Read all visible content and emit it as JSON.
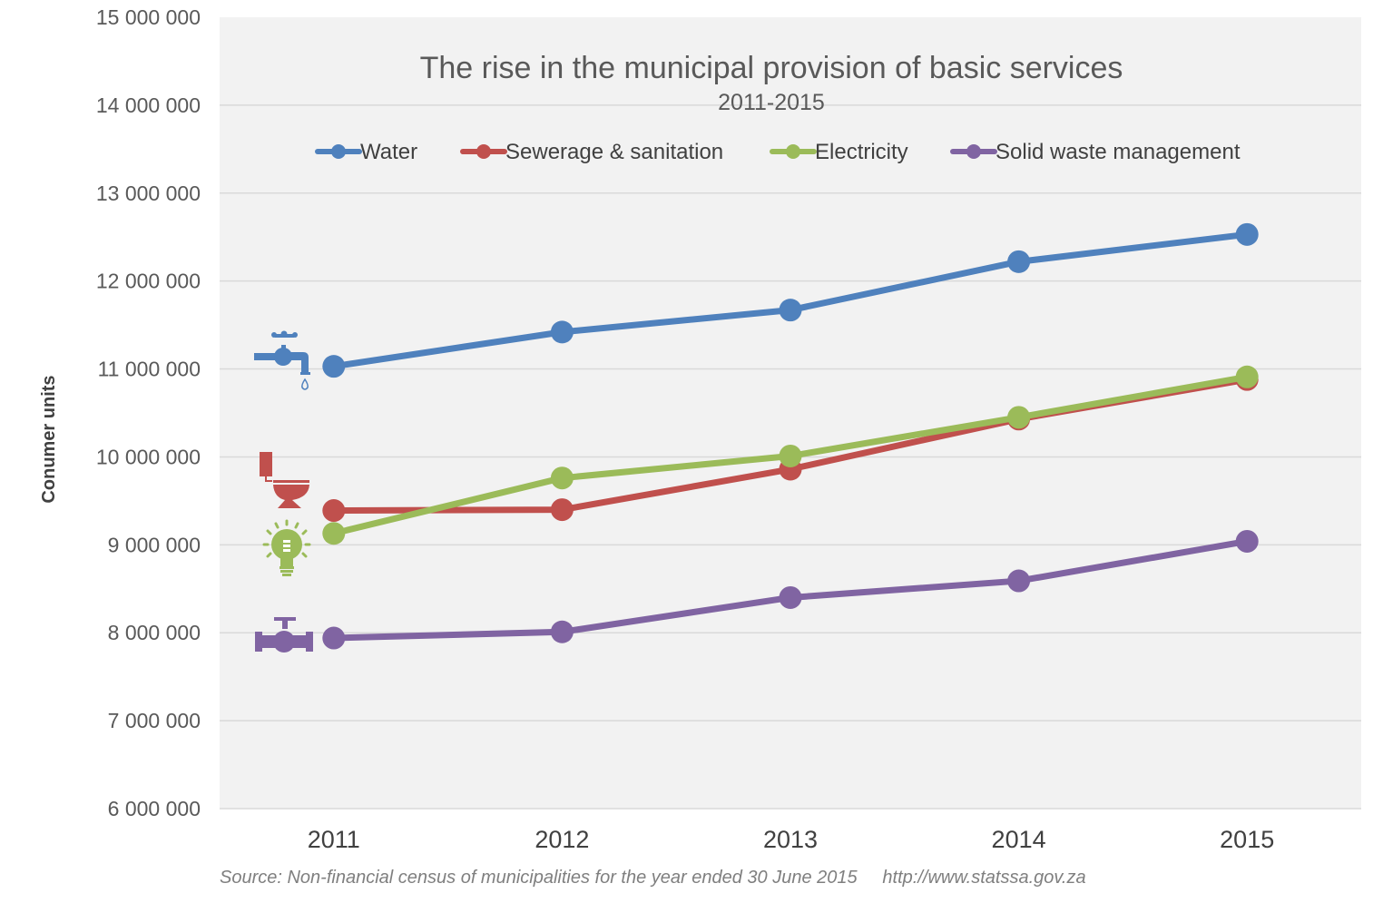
{
  "chart_data": {
    "type": "line",
    "title": "The rise in the municipal provision of basic services",
    "subtitle": "2011-2015",
    "xlabel": "",
    "ylabel": "Conumer units",
    "categories": [
      "2011",
      "2012",
      "2013",
      "2014",
      "2015"
    ],
    "ylim": [
      6000000,
      15000000
    ],
    "ytick_step": 1000000,
    "yticks": [
      "6 000 000",
      "7 000 000",
      "8 000 000",
      "9 000 000",
      "10 000 000",
      "11 000 000",
      "12 000 000",
      "13 000 000",
      "14 000 000",
      "15 000 000"
    ],
    "grid": true,
    "legend_position": "top",
    "series": [
      {
        "name": "Water",
        "color": "#4f81bd",
        "icon": "water-tap-icon",
        "values": [
          11030000,
          11420000,
          11670000,
          12220000,
          12530000
        ]
      },
      {
        "name": "Sewerage & sanitation",
        "color": "#c0504d",
        "icon": "toilet-icon",
        "values": [
          9390000,
          9400000,
          9860000,
          10430000,
          10880000
        ]
      },
      {
        "name": "Electricity",
        "color": "#9bbb59",
        "icon": "light-bulb-icon",
        "values": [
          9130000,
          9760000,
          10010000,
          10450000,
          10910000
        ]
      },
      {
        "name": "Solid waste management",
        "color": "#8064a2",
        "icon": "pipe-valve-icon",
        "values": [
          7940000,
          8010000,
          8400000,
          8590000,
          9040000
        ]
      }
    ],
    "source": "Source: Non-financial census of municipalities for the year ended 30 June 2015     http://www.statssa.gov.za"
  }
}
